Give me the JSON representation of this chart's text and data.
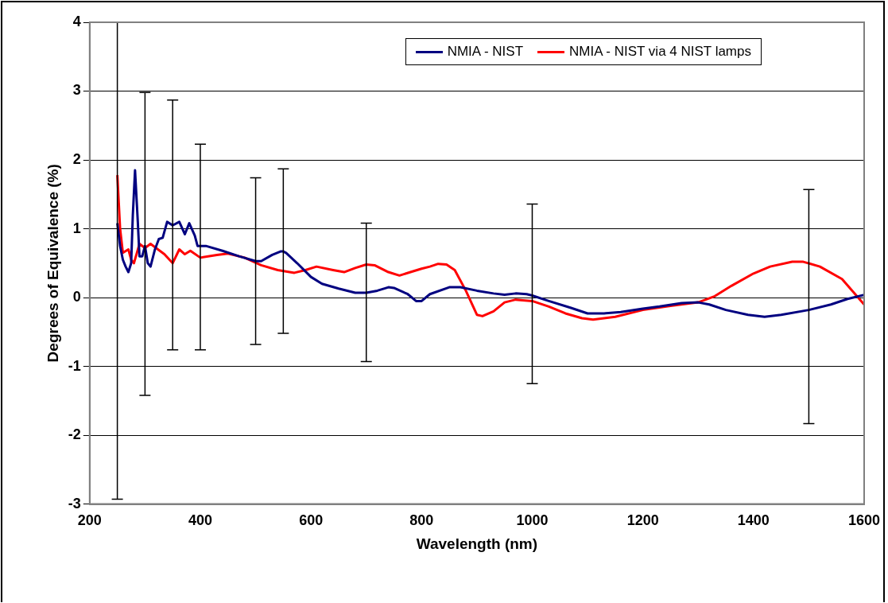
{
  "chart_data": {
    "type": "line",
    "xlabel": "Wavelength (nm)",
    "ylabel": "Degrees of Equivalence (%)",
    "xlim": [
      200,
      1600
    ],
    "xticks": [
      200,
      400,
      600,
      800,
      1000,
      1200,
      1400,
      1600
    ],
    "ylim": [
      -3,
      4
    ],
    "yticks": [
      -3,
      -2,
      -1,
      0,
      1,
      2,
      3,
      4
    ],
    "grid": "y",
    "legend": "top right",
    "marker": "none",
    "line_style": "solid",
    "series": [
      {
        "name": "NMIA - NIST",
        "color": "#000080",
        "x": [
          250,
          255,
          260,
          265,
          270,
          275,
          278,
          282,
          287,
          290,
          295,
          300,
          305,
          310,
          318,
          325,
          332,
          340,
          350,
          362,
          372,
          380,
          390,
          395,
          400,
          410,
          440,
          470,
          500,
          510,
          530,
          545,
          550,
          555,
          575,
          600,
          620,
          650,
          680,
          700,
          720,
          740,
          750,
          775,
          790,
          800,
          815,
          850,
          870,
          900,
          930,
          950,
          970,
          990,
          1000,
          1030,
          1070,
          1100,
          1130,
          1160,
          1200,
          1230,
          1270,
          1300,
          1320,
          1350,
          1390,
          1420,
          1450,
          1500,
          1540,
          1570,
          1600
        ],
        "values": [
          1.08,
          0.75,
          0.55,
          0.45,
          0.37,
          0.5,
          1.2,
          1.85,
          1.1,
          0.6,
          0.6,
          0.75,
          0.5,
          0.45,
          0.7,
          0.85,
          0.87,
          1.1,
          1.05,
          1.1,
          0.92,
          1.08,
          0.9,
          0.75,
          0.75,
          0.75,
          0.68,
          0.6,
          0.53,
          0.53,
          0.62,
          0.67,
          0.67,
          0.65,
          0.5,
          0.3,
          0.2,
          0.13,
          0.07,
          0.07,
          0.1,
          0.15,
          0.14,
          0.05,
          -0.05,
          -0.05,
          0.05,
          0.15,
          0.15,
          0.1,
          0.06,
          0.04,
          0.06,
          0.05,
          0.03,
          -0.05,
          -0.15,
          -0.23,
          -0.23,
          -0.21,
          -0.16,
          -0.13,
          -0.08,
          -0.07,
          -0.1,
          -0.18,
          -0.25,
          -0.28,
          -0.25,
          -0.18,
          -0.1,
          -0.02,
          0.04
        ],
        "errors": [
          [
            -2.93,
            4
          ],
          null,
          null,
          null,
          null,
          null,
          null,
          null,
          null,
          null,
          null,
          [
            -1.42,
            2.98
          ],
          null,
          null,
          null,
          null,
          null,
          null,
          [
            -0.76,
            2.87
          ],
          null,
          null,
          null,
          null,
          null,
          [
            -0.76,
            2.23
          ],
          null,
          null,
          null,
          [
            -0.68,
            1.74
          ],
          null,
          null,
          null,
          [
            -0.52,
            1.87
          ],
          null,
          null,
          null,
          null,
          null,
          null,
          [
            -0.93,
            1.08
          ],
          null,
          null,
          null,
          null,
          null,
          null,
          null,
          null,
          null,
          null,
          null,
          null,
          null,
          null,
          [
            -1.25,
            1.36
          ],
          null,
          null,
          null,
          null,
          null,
          null,
          null,
          null,
          null,
          null,
          null,
          null,
          null,
          null,
          [
            -1.83,
            1.57
          ],
          null,
          null,
          null
        ]
      },
      {
        "name": "NMIA - NIST via 4 NIST lamps",
        "color": "#ff0000",
        "x": [
          250,
          255,
          260,
          270,
          275,
          280,
          290,
          300,
          310,
          320,
          335,
          350,
          362,
          372,
          382,
          400,
          430,
          450,
          480,
          510,
          540,
          570,
          590,
          610,
          640,
          660,
          680,
          700,
          715,
          740,
          760,
          780,
          800,
          815,
          830,
          845,
          860,
          880,
          900,
          910,
          930,
          950,
          970,
          1000,
          1030,
          1060,
          1090,
          1110,
          1150,
          1200,
          1250,
          1300,
          1330,
          1360,
          1400,
          1430,
          1470,
          1490,
          1520,
          1560,
          1600
        ],
        "values": [
          1.78,
          1.0,
          0.65,
          0.7,
          0.55,
          0.5,
          0.78,
          0.72,
          0.78,
          0.72,
          0.63,
          0.5,
          0.7,
          0.63,
          0.68,
          0.58,
          0.62,
          0.64,
          0.58,
          0.47,
          0.4,
          0.36,
          0.4,
          0.45,
          0.4,
          0.37,
          0.43,
          0.48,
          0.47,
          0.37,
          0.32,
          0.37,
          0.42,
          0.45,
          0.49,
          0.48,
          0.4,
          0.1,
          -0.25,
          -0.27,
          -0.2,
          -0.07,
          -0.03,
          -0.05,
          -0.13,
          -0.23,
          -0.3,
          -0.32,
          -0.28,
          -0.18,
          -0.12,
          -0.07,
          0.02,
          0.17,
          0.35,
          0.45,
          0.52,
          0.52,
          0.45,
          0.27,
          -0.1
        ]
      }
    ]
  }
}
